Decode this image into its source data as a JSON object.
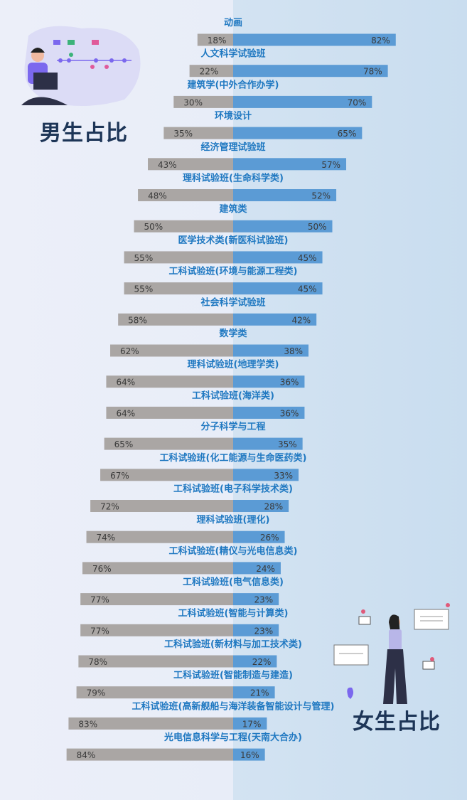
{
  "titles": {
    "male": "男生占比",
    "female": "女生占比"
  },
  "colors": {
    "male_bar": "#aaa6a4",
    "female_bar": "#5b9bd5",
    "category_label": "#1f78c1",
    "value_label": "#3a3a3a",
    "title": "#1d3557"
  },
  "chart_data": {
    "type": "bar",
    "orientation": "diverging-horizontal",
    "xlim": [
      0,
      100
    ],
    "grid": false,
    "categories": [
      "动画",
      "人文科学试验班",
      "建筑学(中外合作办学)",
      "环境设计",
      "经济管理试验班",
      "理科试验班(生命科学类)",
      "建筑类",
      "医学技术类(新医科试验班)",
      "工科试验班(环境与能源工程类)",
      "社会科学试验班",
      "数学类",
      "理科试验班(地理学类)",
      "工科试验班(海洋类)",
      "分子科学与工程",
      "工科试验班(化工能源与生命医药类)",
      "工科试验班(电子科学技术类)",
      "理科试验班(理化)",
      "工科试验班(精仪与光电信息类)",
      "工科试验班(电气信息类)",
      "工科试验班(智能与计算类)",
      "工科试验班(新材料与加工技术类)",
      "工科试验班(智能制造与建造)",
      "工科试验班(高新舰船与海洋装备智能设计与管理)",
      "光电信息科学与工程(天南大合办)"
    ],
    "series": [
      {
        "name": "男生占比",
        "values": [
          18,
          22,
          30,
          35,
          43,
          48,
          50,
          55,
          55,
          58,
          62,
          64,
          64,
          65,
          67,
          72,
          74,
          76,
          77,
          77,
          78,
          79,
          83,
          84
        ]
      },
      {
        "name": "女生占比",
        "values": [
          82,
          78,
          70,
          65,
          57,
          52,
          50,
          45,
          45,
          42,
          38,
          36,
          36,
          35,
          33,
          28,
          26,
          24,
          23,
          23,
          22,
          21,
          17,
          16
        ]
      }
    ],
    "value_format": "{v}%"
  }
}
